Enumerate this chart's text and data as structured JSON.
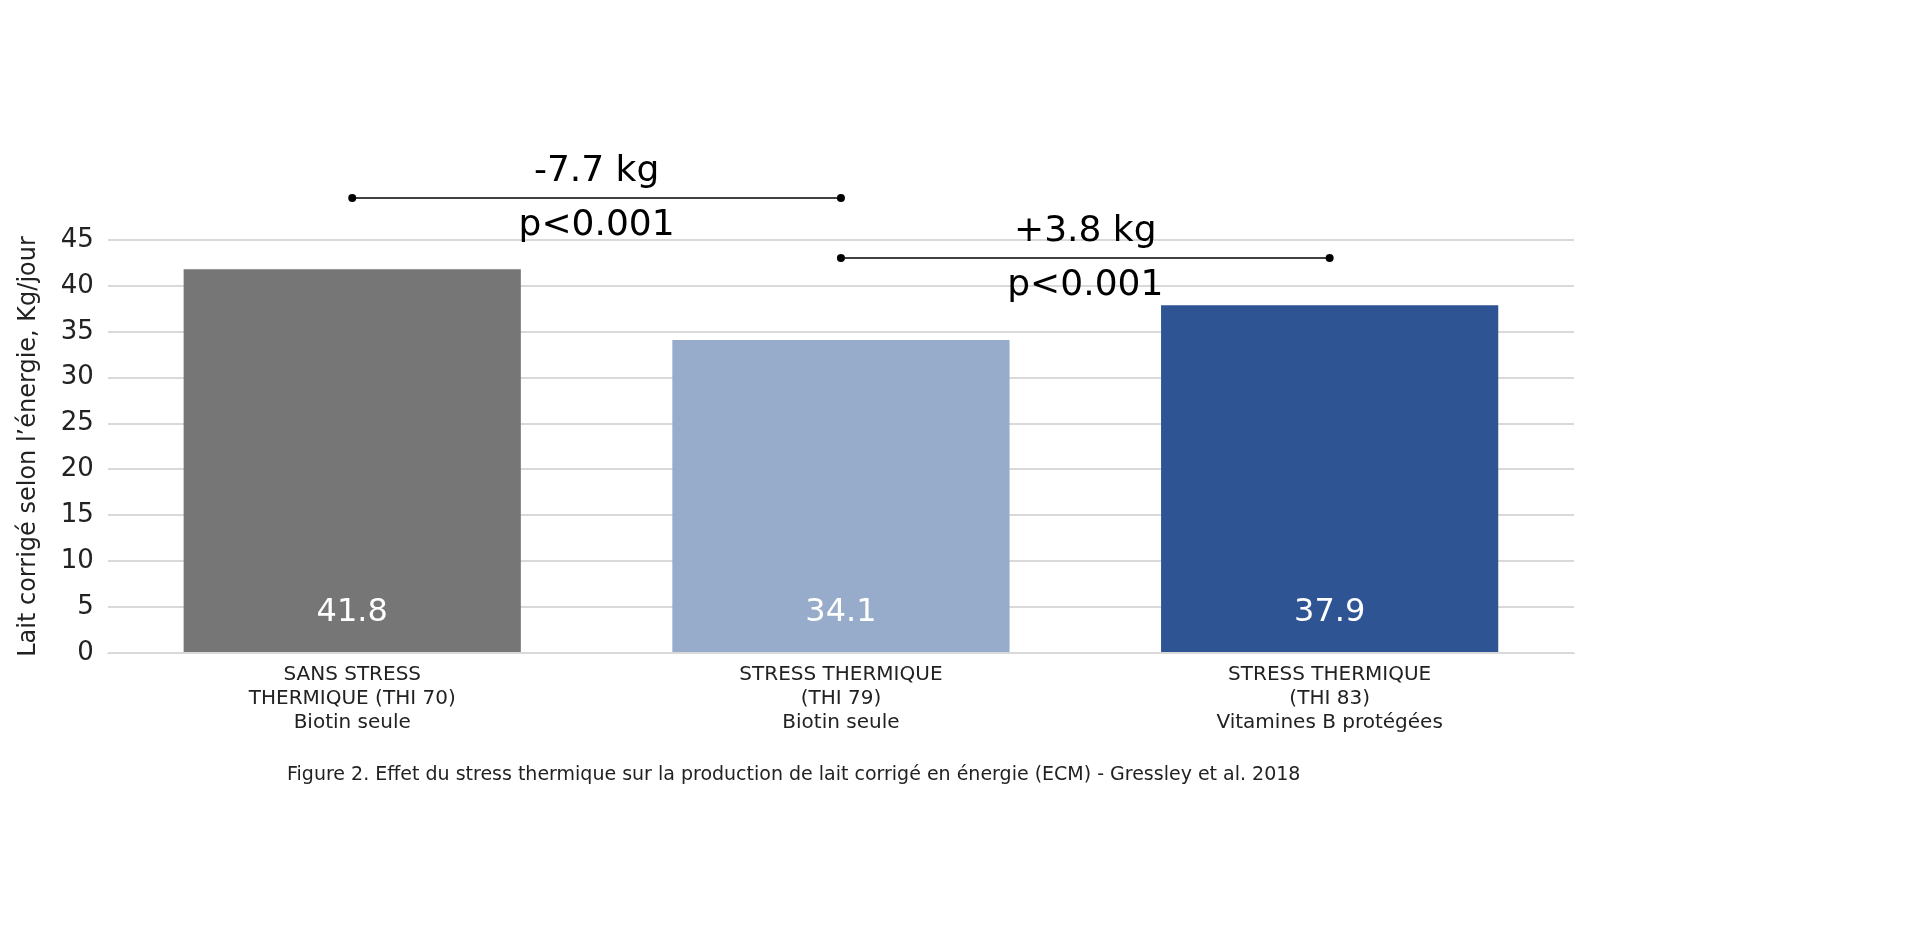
{
  "chart_data": {
    "type": "bar",
    "ylabel": "Lait corrigé selon l’énergie, Kg/jour",
    "categories": [
      "SANS STRESS\nTHERMIQUE (THI 70)\nBiotin seule",
      "STRESS THERMIQUE\n(THI 79)\nBiotin seule",
      "STRESS THERMIQUE\n(THI 83)\nVitamines B protégées"
    ],
    "values": [
      41.8,
      34.1,
      37.9
    ],
    "colors": [
      "#767676",
      "#97abcb",
      "#2e5494"
    ],
    "ylim": [
      0,
      45
    ],
    "yticks": [
      0,
      5,
      10,
      15,
      20,
      25,
      30,
      35,
      40,
      45
    ],
    "grid": "y",
    "legend": false,
    "data_labels": true,
    "annotations": [
      "-7.7 kg",
      "p<0.001",
      "+3.8 kg",
      "p<0.001",
      "Figure 2.  Effet du stress thermique sur la production de lait corrigé en énergie (ECM) - Gressley et al. 2018"
    ]
  }
}
